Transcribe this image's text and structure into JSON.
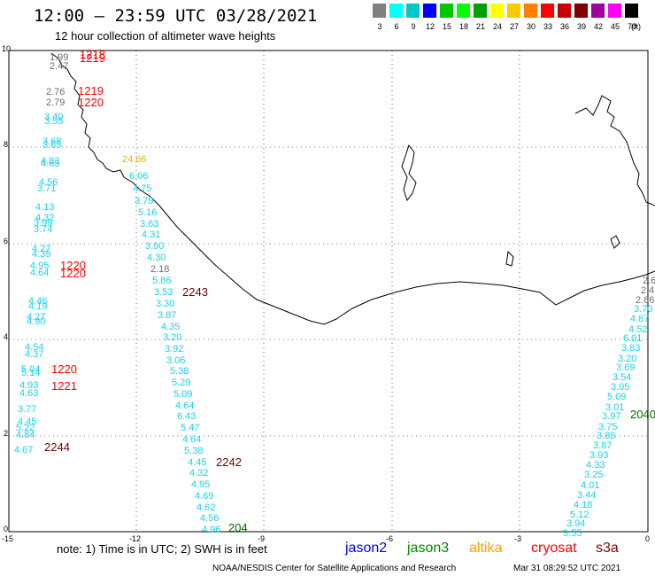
{
  "title": "12:00 – 23:59 UTC 03/28/2021",
  "subtitle": "12 hour collection of altimeter wave heights",
  "scale": {
    "unit_label": "(ft)",
    "colors": [
      "#808080",
      "#00ffff",
      "#00c8c8",
      "#0000ff",
      "#00c800",
      "#00ff00",
      "#00a000",
      "#ffff00",
      "#ffc800",
      "#ff8000",
      "#ff0000",
      "#c80000",
      "#800000",
      "#a000a0",
      "#ff00ff",
      "#000000"
    ],
    "labels": [
      "3",
      "6",
      "9",
      "12",
      "15",
      "18",
      "21",
      "24",
      "27",
      "30",
      "33",
      "36",
      "39",
      "42",
      "45",
      "70"
    ]
  },
  "axes": {
    "x_ticks": [
      "-15",
      "-12",
      "-9",
      "-6",
      "-3",
      "0"
    ],
    "y_ticks": [
      "0",
      "2",
      "4",
      "6",
      "8",
      "10"
    ]
  },
  "tracks": [
    {
      "name": "track-a",
      "labels": [
        "1.99",
        "2.47",
        "2.76",
        "2.79",
        "3.40",
        "3.55",
        "3.68",
        "3.65",
        "4.83",
        "4.63",
        "4.56",
        "3.71",
        "4.13",
        "4.32",
        "3.99",
        "3.74",
        "4.27",
        "4.39",
        "4.95",
        "4.64",
        "4.46",
        "4.19",
        "4.27",
        "4.90",
        "4.54",
        "4.37",
        "5.04",
        "5.14",
        "4.93",
        "4.63",
        "3.77",
        "4.45",
        "5.22",
        "4.84",
        "4.67"
      ],
      "colors": [
        "gray",
        "gray",
        "gray",
        "gray",
        "cyan",
        "cyan",
        "cyan",
        "cyan",
        "cyan",
        "cyan",
        "cyan",
        "cyan",
        "cyan",
        "cyan",
        "cyan",
        "cyan",
        "cyan",
        "cyan",
        "cyan",
        "cyan",
        "cyan",
        "cyan",
        "cyan",
        "cyan",
        "cyan",
        "cyan",
        "cyan",
        "cyan",
        "cyan",
        "cyan",
        "cyan",
        "cyan",
        "cyan",
        "cyan",
        "cyan"
      ]
    },
    {
      "name": "track-b",
      "labels": [
        "24.66",
        "6.06",
        "4.75",
        "3.79",
        "5.16",
        "3.63",
        "4.31",
        "3.90",
        "4.30",
        "2.18",
        "5.86",
        "3.53",
        "3.30",
        "3.87",
        "4.35",
        "3.20",
        "3.92",
        "3.06",
        "5.38",
        "5.29",
        "5.09",
        "4.64",
        "6.43",
        "5.47",
        "4.64",
        "5.38",
        "4.45",
        "4.32",
        "4.95",
        "4.69",
        "4.62",
        "4.56",
        "4.96"
      ],
      "colors": [
        "orange",
        "cyan",
        "cyan",
        "cyan",
        "cyan",
        "cyan",
        "cyan",
        "cyan",
        "cyan",
        "gray",
        "cyan",
        "cyan",
        "cyan",
        "cyan",
        "cyan",
        "cyan",
        "cyan",
        "cyan",
        "cyan",
        "cyan",
        "cyan",
        "cyan",
        "cyan",
        "cyan",
        "cyan",
        "cyan",
        "cyan",
        "cyan",
        "cyan",
        "cyan",
        "cyan",
        "cyan",
        "cyan"
      ]
    },
    {
      "name": "track-c",
      "labels": [
        "2.6",
        "2.4",
        "2.66",
        "3.70",
        "4.87",
        "4.52",
        "6.01",
        "3.83",
        "3.20",
        "3.69",
        "3.54",
        "3.05",
        "5.09",
        "3.01",
        "3.97",
        "3.75",
        "3.88",
        "3.87",
        "3.93",
        "4.33",
        "3.25",
        "4.01",
        "3.44",
        "4.18",
        "5.12",
        "3.94",
        "3.55"
      ],
      "colors": [
        "gray",
        "gray",
        "gray",
        "cyan",
        "cyan",
        "cyan",
        "cyan",
        "cyan",
        "cyan",
        "cyan",
        "cyan",
        "cyan",
        "cyan",
        "cyan",
        "cyan",
        "cyan",
        "cyan",
        "cyan",
        "cyan",
        "cyan",
        "cyan",
        "cyan",
        "cyan",
        "cyan",
        "cyan",
        "cyan",
        "cyan"
      ]
    }
  ],
  "time_tags": [
    {
      "text": "1218",
      "color": "red"
    },
    {
      "text": "1219",
      "color": "red"
    },
    {
      "text": "1219",
      "color": "red"
    },
    {
      "text": "1220",
      "color": "red"
    },
    {
      "text": "1220",
      "color": "red"
    },
    {
      "text": "1220",
      "color": "red"
    },
    {
      "text": "1220",
      "color": "red"
    },
    {
      "text": "1221",
      "color": "red"
    },
    {
      "text": "2244",
      "color": "dred"
    },
    {
      "text": "2243",
      "color": "dred"
    },
    {
      "text": "2242",
      "color": "dred"
    },
    {
      "text": "204",
      "color": "dgreen"
    },
    {
      "text": "2040",
      "color": "dgreen"
    }
  ],
  "note": "note:  1) Time is in UTC;  2) SWH is in feet",
  "satellites": [
    {
      "name": "jason2",
      "color": "#0000ff"
    },
    {
      "name": "jason3",
      "color": "#008c00"
    },
    {
      "name": "altika",
      "color": "#ffa000"
    },
    {
      "name": "cryosat",
      "color": "#ff0000"
    },
    {
      "name": "s3a",
      "color": "#8b0000"
    }
  ],
  "credit": "NOAA/NESDIS Center for Satellite Applications and Research",
  "timestamp": "Mar 31 08:29:52 UTC 2021"
}
